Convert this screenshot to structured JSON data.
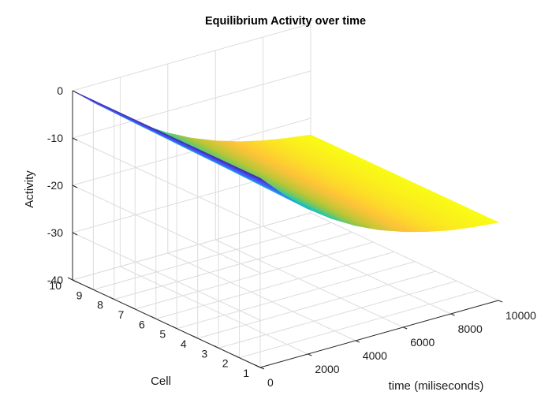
{
  "chart_data": {
    "type": "surface",
    "title": "Equilibrium Activity over time",
    "xlabel": "time (miliseconds)",
    "ylabel": "Cell",
    "zlabel": "Activity",
    "xlim": [
      0,
      10000
    ],
    "ylim": [
      1,
      10
    ],
    "zlim": [
      -40,
      0
    ],
    "x_ticks": [
      "0",
      "2000",
      "4000",
      "6000",
      "8000",
      "10000"
    ],
    "y_ticks": [
      "1",
      "2",
      "3",
      "4",
      "5",
      "6",
      "7",
      "8",
      "9",
      "10"
    ],
    "z_ticks": [
      "0",
      "-10",
      "-20",
      "-30",
      "-40"
    ],
    "grid": true,
    "colormap": "parula",
    "series": [
      {
        "cell": 1,
        "time": [
          0,
          1000,
          2000,
          3000,
          4000,
          5000,
          6000,
          7000,
          8000,
          9000,
          10000
        ],
        "activity": [
          0,
          -5.0,
          -9.3,
          -12.8,
          -15.7,
          -18.0,
          -19.8,
          -21.2,
          -22.3,
          -23.0,
          -23.5
        ]
      },
      {
        "cell": 5,
        "time": [
          0,
          1000,
          2000,
          3000,
          4000,
          5000,
          6000,
          7000,
          8000,
          9000,
          10000
        ],
        "activity": [
          0,
          -4.6,
          -8.7,
          -12.2,
          -15.2,
          -17.6,
          -19.5,
          -21.0,
          -22.1,
          -22.9,
          -23.5
        ]
      },
      {
        "cell": 10,
        "time": [
          0,
          1000,
          2000,
          3000,
          4000,
          5000,
          6000,
          7000,
          8000,
          9000,
          10000
        ],
        "activity": [
          0,
          -4.2,
          -8.1,
          -11.6,
          -14.6,
          -17.1,
          -19.1,
          -20.7,
          -21.9,
          -22.8,
          -23.5
        ]
      }
    ]
  }
}
